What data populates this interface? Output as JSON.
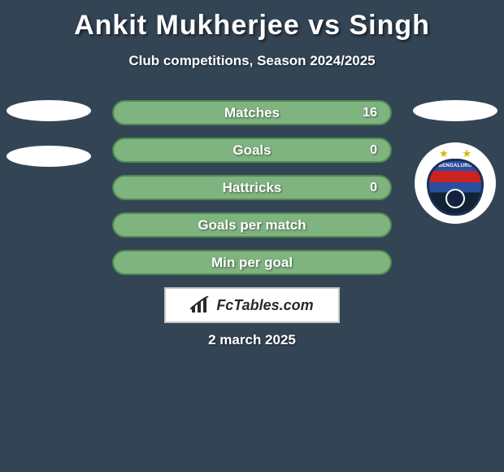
{
  "background_color": "#334455",
  "text_color": "#ffffff",
  "title": "Ankit Mukherjee vs Singh",
  "title_fontsize": 34,
  "subtitle": "Club competitions, Season 2024/2025",
  "subtitle_fontsize": 17,
  "date": "2 march 2025",
  "brand": "FcTables.com",
  "brandbox": {
    "bg": "#ffffff",
    "border": "#c8c8c8"
  },
  "bar_style": {
    "height": 31,
    "radius": 16,
    "gap": 15,
    "label_fontsize": 17,
    "value_fontsize": 16
  },
  "bars": [
    {
      "label": "Matches",
      "left": "",
      "right": "16",
      "fill": "#7fb37f",
      "border": "#4f8a4f"
    },
    {
      "label": "Goals",
      "left": "",
      "right": "0",
      "fill": "#7fb37f",
      "border": "#4f8a4f"
    },
    {
      "label": "Hattricks",
      "left": "",
      "right": "0",
      "fill": "#7fb37f",
      "border": "#4f8a4f"
    },
    {
      "label": "Goals per match",
      "left": "",
      "right": "",
      "fill": "#7fb37f",
      "border": "#4f8a4f"
    },
    {
      "label": "Min per goal",
      "left": "",
      "right": "",
      "fill": "#7fb37f",
      "border": "#4f8a4f"
    }
  ],
  "left_placeholders": {
    "oval_color": "#ffffff",
    "count": 2
  },
  "right_top_oval_color": "#ffffff",
  "crest": {
    "bg": "#ffffff",
    "name": "BENGALURU",
    "stars": 2,
    "primary": "#2a4f9e",
    "accent": "#c22222"
  }
}
